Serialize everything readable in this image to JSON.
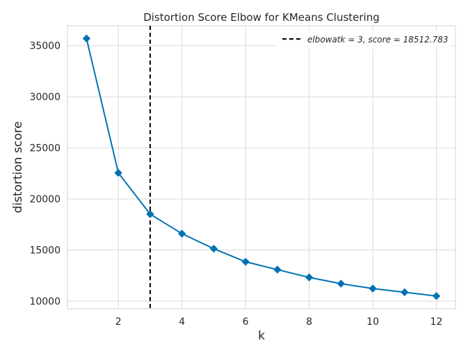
{
  "chart_data": {
    "type": "line",
    "title": "Distortion Score Elbow for KMeans Clustering",
    "xlabel": "k",
    "ylabel": "distortion score",
    "x": [
      1,
      2,
      3,
      4,
      5,
      6,
      7,
      8,
      9,
      10,
      11,
      12
    ],
    "series": [
      {
        "values": [
          35700,
          22550,
          18512.783,
          16600,
          15130,
          13850,
          13080,
          12320,
          11710,
          11230,
          10870,
          10500
        ],
        "color": "#0072b2",
        "marker": "diamond"
      }
    ],
    "xlim": [
      0.4,
      12.6
    ],
    "ylim": [
      9250,
      36950
    ],
    "xticks": [
      2,
      4,
      6,
      8,
      10,
      12
    ],
    "yticks": [
      10000,
      15000,
      20000,
      25000,
      30000,
      35000
    ],
    "grid": true,
    "elbow": {
      "k": 3,
      "score": 18512.783,
      "label": "elbowatk = 3, score = 18512.783",
      "color": "#000000"
    },
    "legend_position": "top-right"
  }
}
